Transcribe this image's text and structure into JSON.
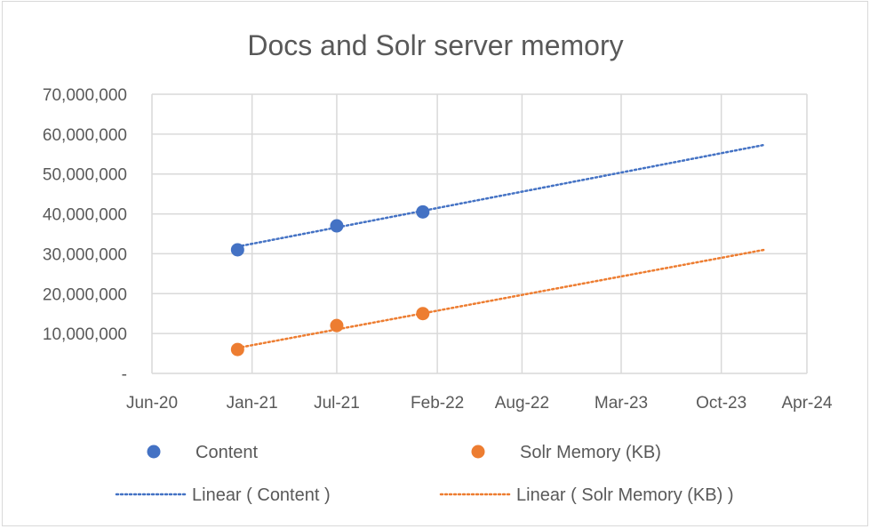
{
  "chart_data": {
    "type": "scatter",
    "title": "Docs and Solr server memory",
    "xlabel": "",
    "ylabel": "",
    "x_axis": {
      "kind": "date",
      "range": [
        "2020-06-01",
        "2024-04-01"
      ],
      "tick_values": [
        "2020-06-01",
        "2021-01-01",
        "2021-07-01",
        "2022-02-01",
        "2022-08-01",
        "2023-03-01",
        "2023-10-01",
        "2024-04-01"
      ],
      "tick_labels": [
        "Jun-20",
        "Jan-21",
        "Jul-21",
        "Feb-22",
        "Aug-22",
        "Mar-23",
        "Oct-23",
        "Apr-24"
      ]
    },
    "y_axis": {
      "range": [
        0,
        70000000
      ],
      "tick_values": [
        0,
        10000000,
        20000000,
        30000000,
        40000000,
        50000000,
        60000000,
        70000000
      ],
      "tick_labels": [
        "-",
        "10,000,000",
        "20,000,000",
        "30,000,000",
        "40,000,000",
        "50,000,000",
        "60,000,000",
        "70,000,000"
      ]
    },
    "grid": true,
    "legend_position": "bottom",
    "series": [
      {
        "name": "Content",
        "color": "#4472c4",
        "x": [
          "2020-12-01",
          "2021-07-01",
          "2022-01-01"
        ],
        "y": [
          31000000,
          37000000,
          40500000
        ]
      },
      {
        "name": "Solr Memory (KB)",
        "color": "#ed7d31",
        "x": [
          "2020-12-01",
          "2021-07-01",
          "2022-01-01"
        ],
        "y": [
          6000000,
          12000000,
          15000000
        ]
      }
    ],
    "trendlines": [
      {
        "name": "Linear ( Content )",
        "color": "#4472c4",
        "style": "dotted",
        "x": [
          "2020-12-01",
          "2024-01-01"
        ],
        "y": [
          31800000,
          57300000
        ]
      },
      {
        "name": "Linear ( Solr Memory (KB) )",
        "color": "#ed7d31",
        "style": "dotted",
        "x": [
          "2020-12-01",
          "2024-01-01"
        ],
        "y": [
          6400000,
          31000000
        ]
      }
    ]
  }
}
